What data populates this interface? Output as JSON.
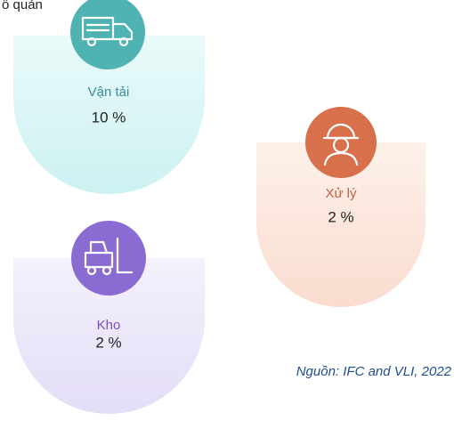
{
  "header": {
    "title": "ổ quản"
  },
  "items": [
    {
      "label": "Vận tải",
      "value": "10 %"
    },
    {
      "label": "Xử lý",
      "value": "2 %"
    },
    {
      "label": "Kho",
      "value": "2 %"
    }
  ],
  "source": "Nguồn: IFC and VLI, 2022"
}
